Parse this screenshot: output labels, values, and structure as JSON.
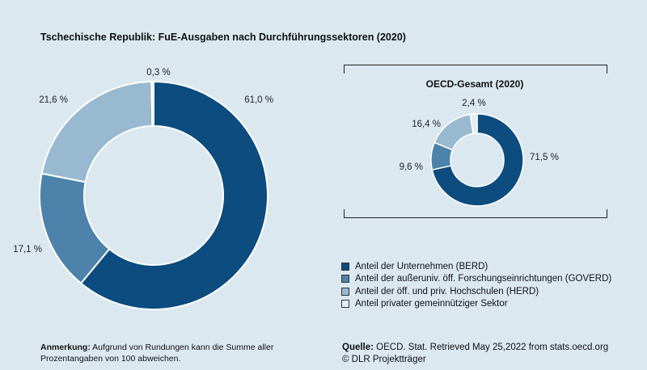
{
  "title": "Tschechische Republik: FuE-Ausgaben nach Durchführungssektoren (2020)",
  "oecd_title": "OECD-Gesamt (2020)",
  "colors": {
    "BERD": "#0d4c7e",
    "GOVERD": "#4d82aa",
    "HERD": "#99b9d1",
    "private": "#e3edf4"
  },
  "chart_data": [
    {
      "type": "pie",
      "title": "Tschechische Republik: FuE-Ausgaben nach Durchführungssektoren (2020)",
      "donut": true,
      "categories": [
        "Anteil der Unternehmen (BERD)",
        "Anteil der außeruniv. öff. Forschungseinrichtungen (GOVERD)",
        "Anteil der öff. und priv. Hochschulen (HERD)",
        "Anteil privater gemeinnütziger Sektor"
      ],
      "values": [
        61.0,
        17.1,
        21.6,
        0.3
      ],
      "labels": [
        "61,0 %",
        "17,1 %",
        "21,6 %",
        "0,3 %"
      ]
    },
    {
      "type": "pie",
      "title": "OECD-Gesamt (2020)",
      "donut": true,
      "categories": [
        "Anteil der Unternehmen (BERD)",
        "Anteil der außeruniv. öff. Forschungseinrichtungen (GOVERD)",
        "Anteil der öff. und priv. Hochschulen (HERD)",
        "Anteil privater gemeinnütziger Sektor"
      ],
      "values": [
        71.5,
        9.6,
        16.4,
        2.4
      ],
      "labels": [
        "71,5 %",
        "9,6 %",
        "16,4 %",
        "2,4 %"
      ]
    }
  ],
  "legend": [
    {
      "label": "Anteil der Unternehmen (BERD)"
    },
    {
      "label": "Anteil der außeruniv. öff. Forschungseinrichtungen (GOVERD)"
    },
    {
      "label": "Anteil der öff. und priv. Hochschulen (HERD)"
    },
    {
      "label": "Anteil privater gemeinnütziger Sektor"
    }
  ],
  "note": {
    "label": "Anmerkung:",
    "text": " Aufgrund von Rundungen kann die Summe aller Prozentangaben von 100 abweichen."
  },
  "source": {
    "label": "Quelle:",
    "text": " OECD. Stat. Retrieved May 25,2022 from stats.oecd.org",
    "copyright": "© DLR Projektträger"
  }
}
